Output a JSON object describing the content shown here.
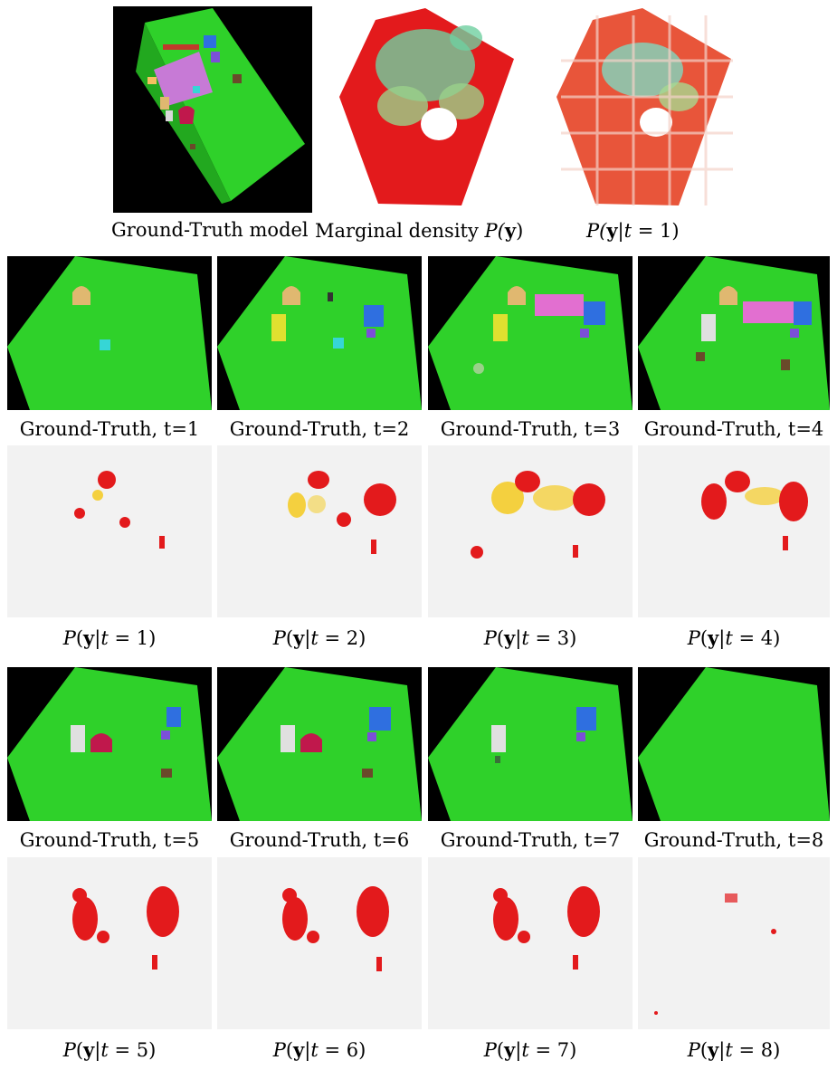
{
  "top_row": {
    "captions": [
      {
        "text": "Ground-Truth model"
      },
      {
        "text": "Marginal density ",
        "math": {
          "pre": "P(",
          "bold": "y",
          "post": ")"
        }
      },
      {
        "text": "",
        "math": {
          "pre": "P(",
          "bold": "y",
          "mid": "|",
          "var": "t",
          "post": " = 1)"
        }
      }
    ]
  },
  "ground_truth_row_1": [
    "Ground-Truth, t=1",
    "Ground-Truth, t=2",
    "Ground-Truth, t=3",
    "Ground-Truth, t=4"
  ],
  "density_row_1": [
    "1",
    "2",
    "3",
    "4"
  ],
  "ground_truth_row_2": [
    "Ground-Truth, t=5",
    "Ground-Truth, t=6",
    "Ground-Truth, t=7",
    "Ground-Truth, t=8"
  ],
  "density_row_2": [
    "5",
    "6",
    "7",
    "8"
  ],
  "colors": {
    "floor": "#2fd12a",
    "background_dark": "#000000",
    "background_light": "#f2f2f2",
    "density_hot": "#e31a1c",
    "density_mid": "#f4d03f",
    "density_cool": "#6fd0a0"
  }
}
